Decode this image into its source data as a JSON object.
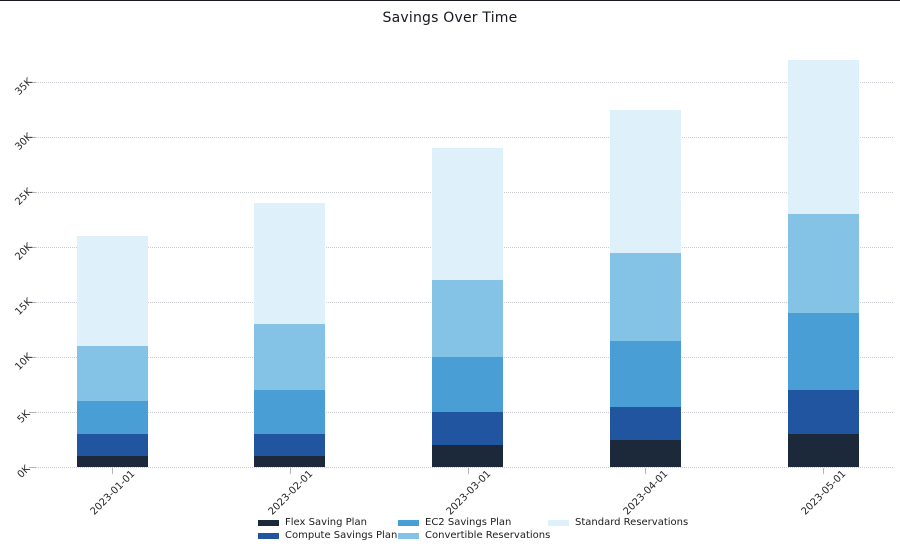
{
  "chart_data": {
    "type": "bar",
    "stacked": true,
    "title": "Savings Over Time",
    "x": [
      "2023-01-01",
      "2023-02-01",
      "2023-03-01",
      "2023-04-01",
      "2023-05-01"
    ],
    "series": [
      {
        "name": "Flex Saving Plan",
        "color": "#1b293b",
        "values": [
          1000,
          1000,
          2000,
          2500,
          3000
        ]
      },
      {
        "name": "Compute Savings Plan",
        "color": "#2155a0",
        "values": [
          2000,
          2000,
          3000,
          3000,
          4000
        ]
      },
      {
        "name": "EC2 Savings Plan",
        "color": "#4a9ed6",
        "values": [
          3000,
          4000,
          5000,
          6000,
          7000
        ]
      },
      {
        "name": "Convertible Reservations",
        "color": "#85c3e6",
        "values": [
          5000,
          6000,
          7000,
          8000,
          9000
        ]
      },
      {
        "name": "Standard Reservations",
        "color": "#def0fa",
        "values": [
          10000,
          11000,
          12000,
          13000,
          14000
        ]
      }
    ],
    "totals": [
      21000,
      24000,
      29000,
      32500,
      37000
    ],
    "yticks": [
      {
        "value": 0,
        "label": "0K"
      },
      {
        "value": 5000,
        "label": "5K"
      },
      {
        "value": 10000,
        "label": "10K"
      },
      {
        "value": 15000,
        "label": "15K"
      },
      {
        "value": 20000,
        "label": "20K"
      },
      {
        "value": 25000,
        "label": "25K"
      },
      {
        "value": 30000,
        "label": "30K"
      },
      {
        "value": 35000,
        "label": "35K"
      }
    ],
    "ylim": [
      0,
      37500
    ],
    "grid": "horizontal-dotted",
    "legend_position": "bottom-center",
    "legend_columns": [
      [
        0,
        1
      ],
      [
        2,
        3
      ],
      [
        4
      ]
    ]
  }
}
